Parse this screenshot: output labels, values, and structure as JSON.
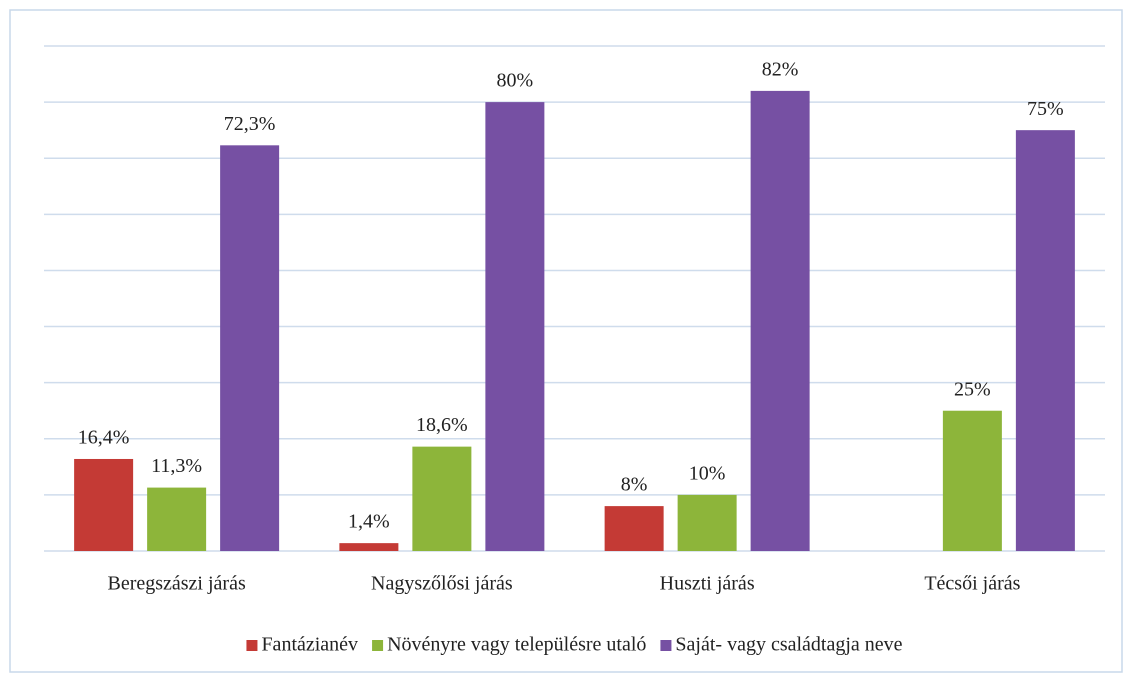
{
  "chart_data": {
    "type": "bar",
    "categories": [
      "Beregszászi járás",
      "Nagyszőlősi járás",
      "Huszti járás",
      "Técsői járás"
    ],
    "series": [
      {
        "name": "Fantázianév",
        "color": "#c43a35",
        "values": [
          16.4,
          1.4,
          8,
          null
        ],
        "value_labels": [
          "16,4%",
          "1,4%",
          "8%",
          null
        ]
      },
      {
        "name": "Növényre vagy településre utaló",
        "color": "#8db53a",
        "values": [
          11.3,
          18.6,
          10,
          25
        ],
        "value_labels": [
          "11,3%",
          "18,6%",
          "10%",
          "25%"
        ]
      },
      {
        "name": "Saját- vagy családtagja neve",
        "color": "#7650a3",
        "values": [
          72.3,
          80,
          82,
          75
        ],
        "value_labels": [
          "72,3%",
          "80%",
          "82%",
          "75%"
        ]
      }
    ],
    "ylim": [
      0,
      90
    ],
    "yticks": [
      0,
      10,
      20,
      30,
      40,
      50,
      60,
      70,
      80,
      90
    ],
    "grid": true,
    "legend": "bottom"
  }
}
